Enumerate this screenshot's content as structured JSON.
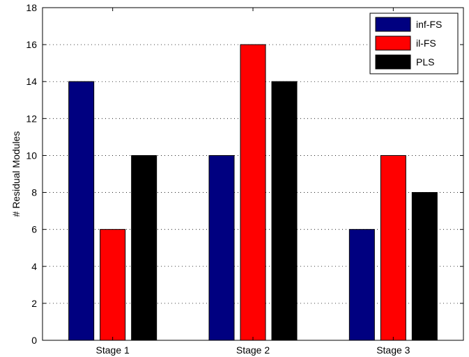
{
  "chart_data": {
    "type": "bar",
    "title": "",
    "xlabel": "",
    "ylabel": "# Residual Modules",
    "categories": [
      "Stage 1",
      "Stage 2",
      "Stage 3"
    ],
    "series": [
      {
        "name": "inf-FS",
        "color": "#000080",
        "values": [
          14,
          10,
          6
        ]
      },
      {
        "name": "il-FS",
        "color": "#ff0000",
        "values": [
          6,
          16,
          10
        ]
      },
      {
        "name": "PLS",
        "color": "#000000",
        "values": [
          10,
          14,
          8
        ]
      }
    ],
    "ylim": [
      0,
      18
    ],
    "yticks": [
      0,
      2,
      4,
      6,
      8,
      10,
      12,
      14,
      16,
      18
    ],
    "grid": "y-dotted",
    "legend_position": "top-right"
  }
}
